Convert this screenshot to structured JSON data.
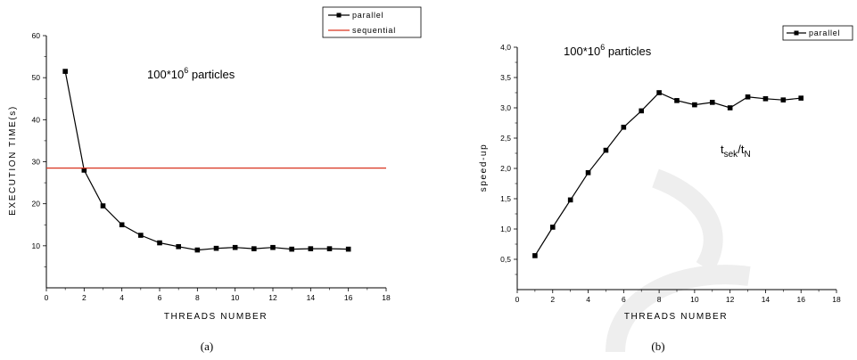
{
  "chart_data": [
    {
      "type": "line",
      "caption": "(a)",
      "annotation": {
        "base": "100*10",
        "exponent": "6",
        "suffix": " particles"
      },
      "xlabel": "THREADS NUMBER",
      "ylabel": "EXECUTION TIME(s)",
      "xlim": [
        0,
        18
      ],
      "ylim": [
        0,
        60
      ],
      "xticks": [
        "0",
        "2",
        "4",
        "6",
        "8",
        "10",
        "12",
        "14",
        "16",
        "18"
      ],
      "yticks": [
        "10",
        "20",
        "30",
        "40",
        "50",
        "60"
      ],
      "grid": false,
      "legend_position": "top-right",
      "series": [
        {
          "name": "parallel",
          "color": "#000000",
          "marker": "square",
          "x": [
            1,
            2,
            3,
            4,
            5,
            6,
            7,
            8,
            9,
            10,
            11,
            12,
            13,
            14,
            15,
            16
          ],
          "y": [
            51.5,
            28.0,
            19.5,
            15.0,
            12.5,
            10.7,
            9.8,
            9.0,
            9.4,
            9.6,
            9.3,
            9.6,
            9.2,
            9.3,
            9.3,
            9.2
          ]
        },
        {
          "name": "sequential",
          "color": "#d9341f",
          "marker": "none",
          "x": [
            0,
            18
          ],
          "y": [
            28.5,
            28.5
          ]
        }
      ]
    },
    {
      "type": "line",
      "caption": "(b)",
      "annotation": {
        "base": "100*10",
        "exponent": "6",
        "suffix": " particles"
      },
      "formula": {
        "t1": "t",
        "s1": "sek",
        "slash": "/",
        "t2": "t",
        "s2": "N"
      },
      "xlabel": "THREADS NUMBER",
      "ylabel": "speed-up",
      "xlim": [
        0,
        18
      ],
      "ylim": [
        0,
        4.0
      ],
      "xticks": [
        "0",
        "2",
        "4",
        "6",
        "8",
        "10",
        "12",
        "14",
        "16",
        "18"
      ],
      "yticks": [
        "0,5",
        "1,0",
        "1,5",
        "2,0",
        "2,5",
        "3,0",
        "3,5",
        "4,0"
      ],
      "grid": false,
      "legend_position": "top-right",
      "series": [
        {
          "name": "parallel",
          "color": "#000000",
          "marker": "square",
          "x": [
            1,
            2,
            3,
            4,
            5,
            6,
            7,
            8,
            9,
            10,
            11,
            12,
            13,
            14,
            15,
            16
          ],
          "y": [
            0.56,
            1.03,
            1.48,
            1.93,
            2.3,
            2.68,
            2.95,
            3.25,
            3.12,
            3.05,
            3.09,
            3.0,
            3.18,
            3.15,
            3.13,
            3.16
          ]
        }
      ]
    }
  ]
}
